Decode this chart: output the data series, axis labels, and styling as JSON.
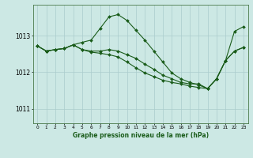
{
  "title": "Graphe pression niveau de la mer (hPa)",
  "bg_color": "#cce8e4",
  "grid_color": "#aacccc",
  "line_color": "#1a5c1a",
  "marker_color": "#1a5c1a",
  "xlim": [
    -0.5,
    23.5
  ],
  "ylim": [
    1010.6,
    1013.85
  ],
  "yticks": [
    1011,
    1012,
    1013
  ],
  "xticks": [
    0,
    1,
    2,
    3,
    4,
    5,
    6,
    7,
    8,
    9,
    10,
    11,
    12,
    13,
    14,
    15,
    16,
    17,
    18,
    19,
    20,
    21,
    22,
    23
  ],
  "series": [
    [
      1012.72,
      1012.58,
      1012.62,
      1012.65,
      1012.75,
      1012.82,
      1012.88,
      1013.2,
      1013.52,
      1013.58,
      1013.42,
      1013.15,
      1012.88,
      1012.58,
      1012.28,
      1011.98,
      1011.82,
      1011.72,
      1011.65,
      1011.55,
      1011.82,
      1012.32,
      1013.12,
      1013.25
    ],
    [
      1012.72,
      1012.58,
      1012.62,
      1012.65,
      1012.75,
      1012.62,
      1012.58,
      1012.58,
      1012.62,
      1012.58,
      1012.48,
      1012.38,
      1012.22,
      1012.08,
      1011.92,
      1011.82,
      1011.72,
      1011.68,
      1011.68,
      1011.55,
      1011.82,
      1012.32,
      1012.58,
      1012.68
    ],
    [
      1012.72,
      1012.58,
      1012.62,
      1012.65,
      1012.75,
      1012.62,
      1012.55,
      1012.52,
      1012.48,
      1012.42,
      1012.28,
      1012.12,
      1011.98,
      1011.88,
      1011.78,
      1011.72,
      1011.68,
      1011.62,
      1011.58,
      1011.55,
      1011.82,
      1012.32,
      1012.58,
      1012.68
    ]
  ]
}
